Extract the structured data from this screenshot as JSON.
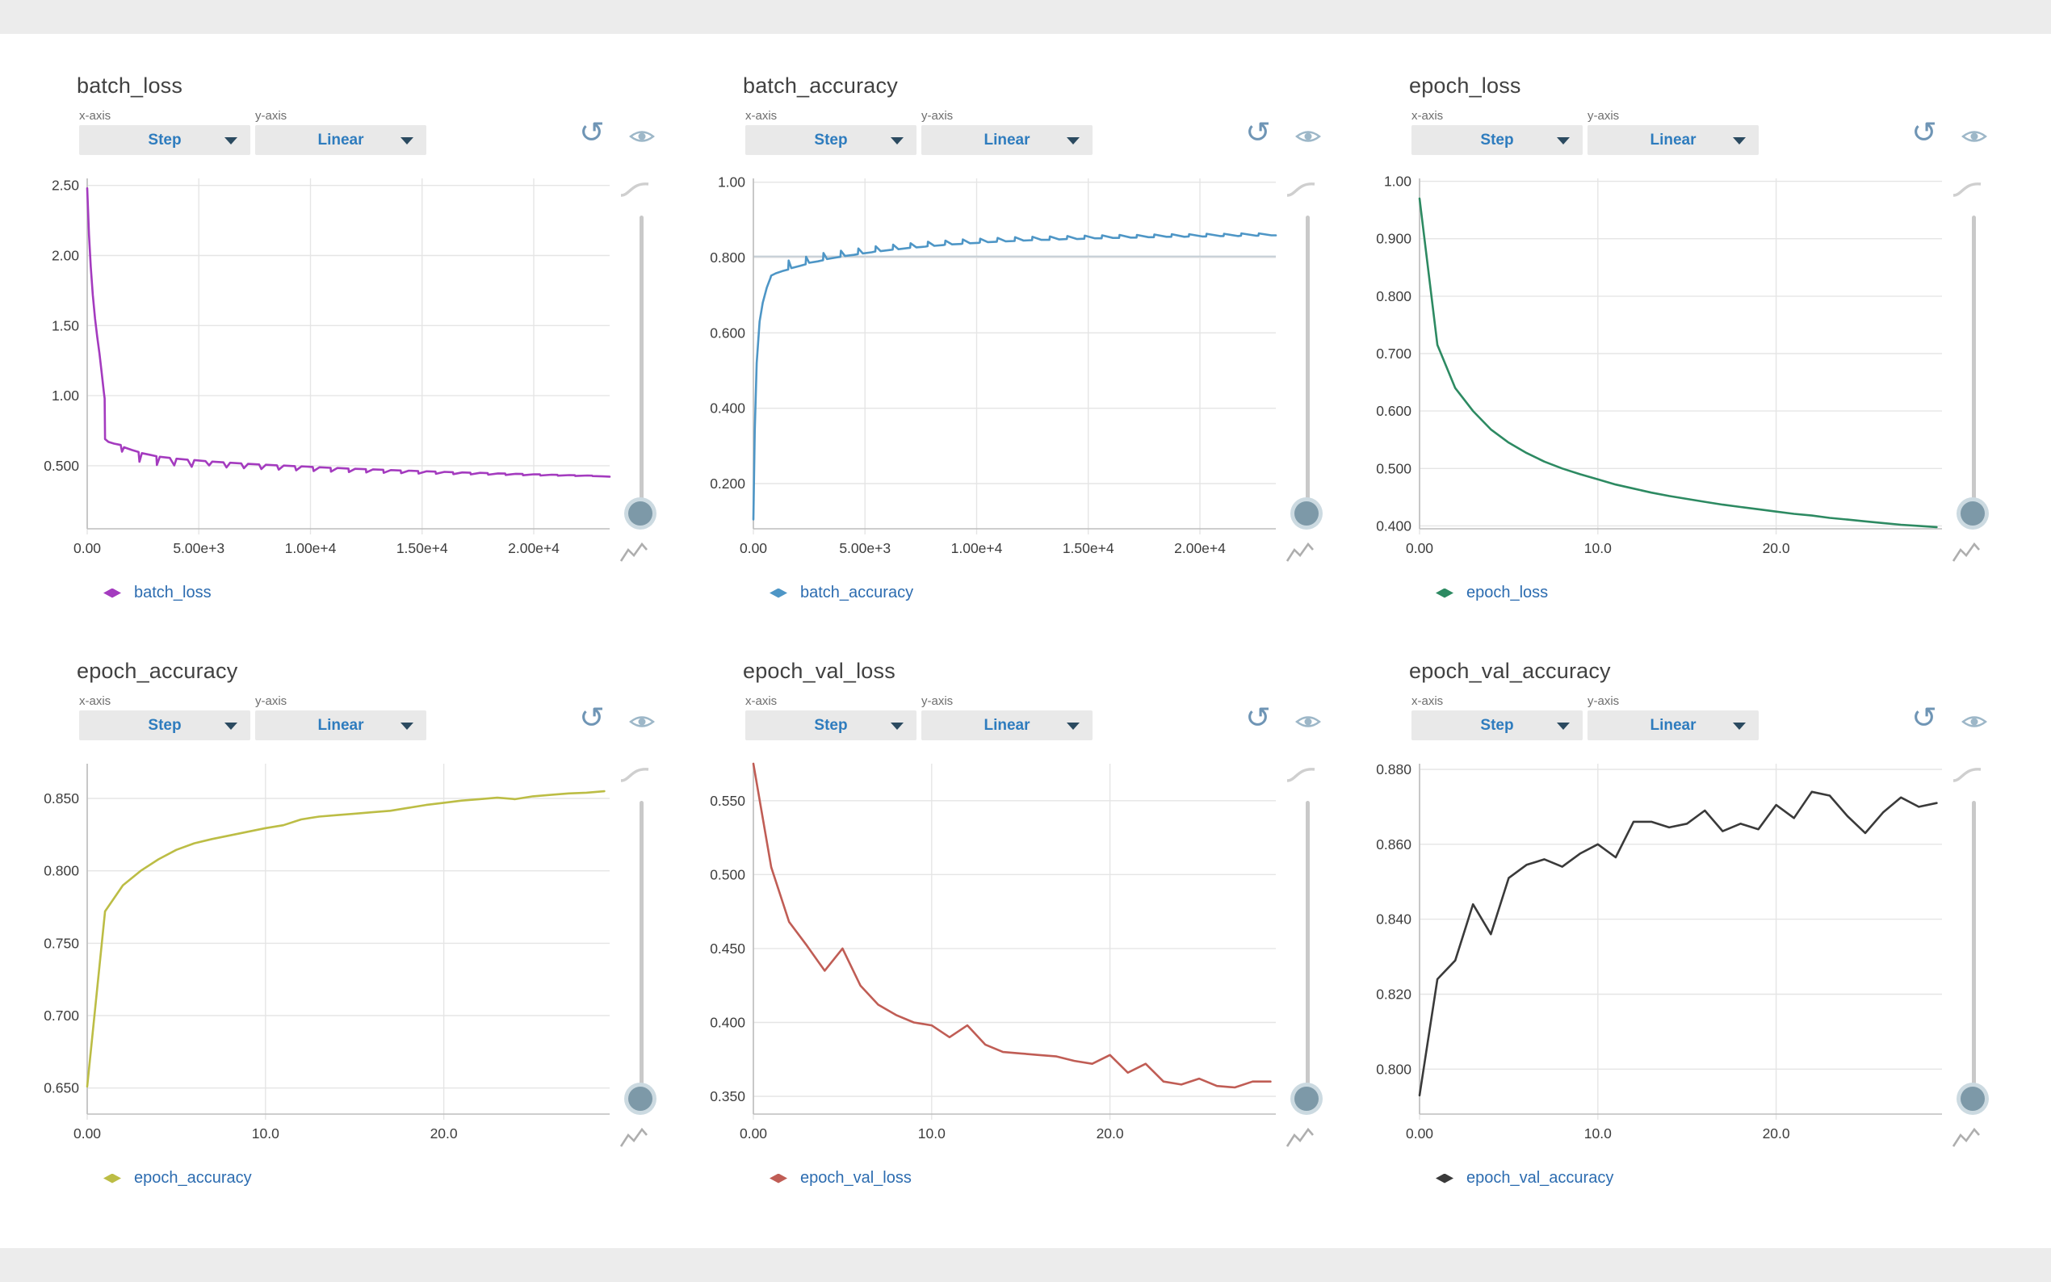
{
  "ui": {
    "x_axis_label": "x-axis",
    "y_axis_label": "y-axis",
    "x_axis_value": "Step",
    "y_axis_value": "Linear",
    "accent_blue": "#2e7cbe",
    "icon_colors": {
      "refresh-icon": "#6f95b5",
      "eye-icon": "#9db7c8",
      "smoothing-curve-icon": "#cfcfcf",
      "line-chart-icon": "#aeaeae",
      "slider-thumb": "#7d99a8"
    },
    "refresh_glyph": "↺"
  },
  "chart_data": [
    {
      "type": "line",
      "title": "batch_loss",
      "legend": "batch_loss",
      "series_color": "#a43bbf",
      "x_domain": [
        0,
        23400
      ],
      "y_domain": [
        0.05,
        2.55
      ],
      "x_ticks": [
        {
          "label": "0.00",
          "v": 0
        },
        {
          "label": "5.00e+3",
          "v": 5000
        },
        {
          "label": "1.00e+4",
          "v": 10000
        },
        {
          "label": "1.50e+4",
          "v": 15000
        },
        {
          "label": "2.00e+4",
          "v": 20000
        }
      ],
      "y_ticks": [
        {
          "label": "2.50",
          "v": 2.5
        },
        {
          "label": "2.00",
          "v": 2.0
        },
        {
          "label": "1.50",
          "v": 1.5
        },
        {
          "label": "1.00",
          "v": 1.0
        },
        {
          "label": "0.500",
          "v": 0.5
        }
      ],
      "points": [
        [
          0,
          2.48
        ],
        [
          80,
          2.15
        ],
        [
          160,
          1.92
        ],
        [
          250,
          1.72
        ],
        [
          350,
          1.55
        ],
        [
          450,
          1.42
        ],
        [
          550,
          1.3
        ],
        [
          650,
          1.16
        ],
        [
          750,
          1.02
        ],
        [
          780,
          0.98
        ],
        [
          800,
          0.69
        ],
        [
          950,
          0.67
        ],
        [
          1200,
          0.658
        ],
        [
          1500,
          0.648
        ],
        [
          1560,
          0.6
        ],
        [
          1650,
          0.632
        ],
        [
          2000,
          0.612
        ],
        [
          2300,
          0.598
        ],
        [
          2340,
          0.528
        ],
        [
          2450,
          0.59
        ],
        [
          2800,
          0.578
        ],
        [
          3100,
          0.568
        ],
        [
          3120,
          0.505
        ],
        [
          3250,
          0.564
        ],
        [
          3700,
          0.556
        ],
        [
          3900,
          0.502
        ],
        [
          4000,
          0.55
        ],
        [
          4500,
          0.543
        ],
        [
          4680,
          0.492
        ],
        [
          4800,
          0.54
        ],
        [
          5300,
          0.533
        ],
        [
          5460,
          0.502
        ],
        [
          5600,
          0.529
        ],
        [
          6100,
          0.524
        ],
        [
          6240,
          0.488
        ],
        [
          6400,
          0.521
        ],
        [
          6900,
          0.516
        ],
        [
          7020,
          0.482
        ],
        [
          7200,
          0.513
        ],
        [
          7700,
          0.509
        ],
        [
          7800,
          0.476
        ],
        [
          8000,
          0.507
        ],
        [
          8500,
          0.503
        ],
        [
          8580,
          0.472
        ],
        [
          8800,
          0.501
        ],
        [
          9300,
          0.497
        ],
        [
          9360,
          0.467
        ],
        [
          9600,
          0.495
        ],
        [
          10100,
          0.491
        ],
        [
          10140,
          0.462
        ],
        [
          10400,
          0.489
        ],
        [
          10900,
          0.485
        ],
        [
          10920,
          0.458
        ],
        [
          11200,
          0.484
        ],
        [
          11700,
          0.48
        ],
        [
          11720,
          0.455
        ],
        [
          12000,
          0.478
        ],
        [
          12480,
          0.475
        ],
        [
          12500,
          0.452
        ],
        [
          12800,
          0.474
        ],
        [
          13260,
          0.471
        ],
        [
          13280,
          0.449
        ],
        [
          13600,
          0.469
        ],
        [
          14040,
          0.466
        ],
        [
          14060,
          0.447
        ],
        [
          14400,
          0.465
        ],
        [
          14820,
          0.462
        ],
        [
          14840,
          0.444
        ],
        [
          15200,
          0.46
        ],
        [
          15600,
          0.458
        ],
        [
          15620,
          0.442
        ],
        [
          16000,
          0.456
        ],
        [
          16380,
          0.454
        ],
        [
          16400,
          0.44
        ],
        [
          16800,
          0.452
        ],
        [
          17160,
          0.45
        ],
        [
          17180,
          0.438
        ],
        [
          17600,
          0.449
        ],
        [
          17940,
          0.447
        ],
        [
          17960,
          0.436
        ],
        [
          18400,
          0.445
        ],
        [
          18720,
          0.444
        ],
        [
          18740,
          0.434
        ],
        [
          19200,
          0.442
        ],
        [
          19500,
          0.441
        ],
        [
          19520,
          0.432
        ],
        [
          20000,
          0.439
        ],
        [
          20280,
          0.438
        ],
        [
          20300,
          0.43
        ],
        [
          20800,
          0.436
        ],
        [
          21060,
          0.435
        ],
        [
          21080,
          0.429
        ],
        [
          21600,
          0.433
        ],
        [
          21840,
          0.432
        ],
        [
          21860,
          0.427
        ],
        [
          22400,
          0.43
        ],
        [
          22620,
          0.429
        ],
        [
          22640,
          0.426
        ],
        [
          23100,
          0.424
        ],
        [
          23400,
          0.422
        ]
      ]
    },
    {
      "type": "line",
      "title": "batch_accuracy",
      "legend": "batch_accuracy",
      "series_color": "#4e96c6",
      "x_domain": [
        0,
        23400
      ],
      "y_domain": [
        0.08,
        1.01
      ],
      "ref_line": {
        "v": 0.803,
        "color": "#c5cfd6"
      },
      "x_ticks": [
        {
          "label": "0.00",
          "v": 0
        },
        {
          "label": "5.00e+3",
          "v": 5000
        },
        {
          "label": "1.00e+4",
          "v": 10000
        },
        {
          "label": "1.50e+4",
          "v": 15000
        },
        {
          "label": "2.00e+4",
          "v": 20000
        }
      ],
      "y_ticks": [
        {
          "label": "1.00",
          "v": 1.0
        },
        {
          "label": "0.800",
          "v": 0.8
        },
        {
          "label": "0.600",
          "v": 0.6
        },
        {
          "label": "0.400",
          "v": 0.4
        },
        {
          "label": "0.200",
          "v": 0.2
        }
      ],
      "points": [
        [
          0,
          0.105
        ],
        [
          60,
          0.34
        ],
        [
          150,
          0.52
        ],
        [
          280,
          0.63
        ],
        [
          420,
          0.68
        ],
        [
          600,
          0.72
        ],
        [
          760,
          0.745
        ],
        [
          800,
          0.752
        ],
        [
          1000,
          0.758
        ],
        [
          1300,
          0.764
        ],
        [
          1560,
          0.768
        ],
        [
          1580,
          0.792
        ],
        [
          1700,
          0.772
        ],
        [
          2100,
          0.778
        ],
        [
          2340,
          0.782
        ],
        [
          2360,
          0.802
        ],
        [
          2500,
          0.786
        ],
        [
          2900,
          0.79
        ],
        [
          3120,
          0.793
        ],
        [
          3140,
          0.812
        ],
        [
          3300,
          0.796
        ],
        [
          3700,
          0.8
        ],
        [
          3900,
          0.802
        ],
        [
          3920,
          0.818
        ],
        [
          4100,
          0.804
        ],
        [
          4500,
          0.807
        ],
        [
          4680,
          0.809
        ],
        [
          4700,
          0.824
        ],
        [
          4900,
          0.811
        ],
        [
          5300,
          0.814
        ],
        [
          5460,
          0.816
        ],
        [
          5480,
          0.83
        ],
        [
          5700,
          0.817
        ],
        [
          6100,
          0.82
        ],
        [
          6240,
          0.821
        ],
        [
          6260,
          0.834
        ],
        [
          6500,
          0.822
        ],
        [
          6900,
          0.825
        ],
        [
          7020,
          0.826
        ],
        [
          7040,
          0.838
        ],
        [
          7300,
          0.827
        ],
        [
          7700,
          0.829
        ],
        [
          7800,
          0.83
        ],
        [
          7820,
          0.842
        ],
        [
          8100,
          0.831
        ],
        [
          8500,
          0.833
        ],
        [
          8580,
          0.834
        ],
        [
          8600,
          0.845
        ],
        [
          8900,
          0.835
        ],
        [
          9300,
          0.836
        ],
        [
          9360,
          0.837
        ],
        [
          9380,
          0.848
        ],
        [
          9700,
          0.838
        ],
        [
          10100,
          0.839
        ],
        [
          10140,
          0.84
        ],
        [
          10160,
          0.85
        ],
        [
          10500,
          0.841
        ],
        [
          10900,
          0.842
        ],
        [
          10940,
          0.852
        ],
        [
          11300,
          0.843
        ],
        [
          11700,
          0.844
        ],
        [
          11720,
          0.854
        ],
        [
          12100,
          0.845
        ],
        [
          12480,
          0.846
        ],
        [
          12500,
          0.855
        ],
        [
          12900,
          0.847
        ],
        [
          13260,
          0.847
        ],
        [
          13280,
          0.856
        ],
        [
          13700,
          0.848
        ],
        [
          14040,
          0.849
        ],
        [
          14060,
          0.857
        ],
        [
          14500,
          0.849
        ],
        [
          14820,
          0.85
        ],
        [
          14840,
          0.858
        ],
        [
          15300,
          0.851
        ],
        [
          15600,
          0.851
        ],
        [
          15620,
          0.859
        ],
        [
          16100,
          0.852
        ],
        [
          16380,
          0.852
        ],
        [
          16400,
          0.86
        ],
        [
          16900,
          0.853
        ],
        [
          17160,
          0.853
        ],
        [
          17180,
          0.86
        ],
        [
          17700,
          0.854
        ],
        [
          17940,
          0.854
        ],
        [
          17960,
          0.861
        ],
        [
          18500,
          0.855
        ],
        [
          18720,
          0.855
        ],
        [
          18740,
          0.862
        ],
        [
          19300,
          0.855
        ],
        [
          19500,
          0.856
        ],
        [
          19520,
          0.862
        ],
        [
          20100,
          0.856
        ],
        [
          20280,
          0.856
        ],
        [
          20300,
          0.863
        ],
        [
          20900,
          0.857
        ],
        [
          21060,
          0.857
        ],
        [
          21080,
          0.863
        ],
        [
          21700,
          0.857
        ],
        [
          21840,
          0.858
        ],
        [
          21860,
          0.864
        ],
        [
          22500,
          0.858
        ],
        [
          22620,
          0.858
        ],
        [
          22640,
          0.864
        ],
        [
          23200,
          0.859
        ],
        [
          23400,
          0.859
        ]
      ]
    },
    {
      "type": "line",
      "title": "epoch_loss",
      "legend": "epoch_loss",
      "series_color": "#2d8a62",
      "x_domain": [
        0,
        29.3
      ],
      "y_domain": [
        0.395,
        1.005
      ],
      "x_ticks": [
        {
          "label": "0.00",
          "v": 0
        },
        {
          "label": "10.0",
          "v": 10
        },
        {
          "label": "20.0",
          "v": 20
        }
      ],
      "y_ticks": [
        {
          "label": "1.00",
          "v": 1.0
        },
        {
          "label": "0.900",
          "v": 0.9
        },
        {
          "label": "0.800",
          "v": 0.8
        },
        {
          "label": "0.700",
          "v": 0.7
        },
        {
          "label": "0.600",
          "v": 0.6
        },
        {
          "label": "0.500",
          "v": 0.5
        },
        {
          "label": "0.400",
          "v": 0.4
        }
      ],
      "values": [
        0.97,
        0.715,
        0.64,
        0.6,
        0.568,
        0.545,
        0.527,
        0.512,
        0.5,
        0.49,
        0.481,
        0.472,
        0.465,
        0.458,
        0.452,
        0.447,
        0.442,
        0.437,
        0.433,
        0.429,
        0.425,
        0.421,
        0.418,
        0.414,
        0.411,
        0.408,
        0.405,
        0.402,
        0.4,
        0.398
      ]
    },
    {
      "type": "line",
      "title": "epoch_accuracy",
      "legend": "epoch_accuracy",
      "series_color": "#bcbd45",
      "x_domain": [
        0,
        29.3
      ],
      "y_domain": [
        0.632,
        0.874
      ],
      "x_ticks": [
        {
          "label": "0.00",
          "v": 0
        },
        {
          "label": "10.0",
          "v": 10
        },
        {
          "label": "20.0",
          "v": 20
        }
      ],
      "y_ticks": [
        {
          "label": "0.850",
          "v": 0.85
        },
        {
          "label": "0.800",
          "v": 0.8
        },
        {
          "label": "0.750",
          "v": 0.75
        },
        {
          "label": "0.700",
          "v": 0.7
        },
        {
          "label": "0.650",
          "v": 0.65
        }
      ],
      "values": [
        0.651,
        0.772,
        0.79,
        0.8,
        0.808,
        0.8145,
        0.819,
        0.822,
        0.8245,
        0.827,
        0.8295,
        0.8315,
        0.8355,
        0.8375,
        0.8385,
        0.8395,
        0.8405,
        0.8415,
        0.8435,
        0.8455,
        0.847,
        0.8485,
        0.8495,
        0.8505,
        0.8495,
        0.8515,
        0.8525,
        0.8535,
        0.854,
        0.855
      ]
    },
    {
      "type": "line",
      "title": "epoch_val_loss",
      "legend": "epoch_val_loss",
      "series_color": "#c05d55",
      "x_domain": [
        0,
        29.3
      ],
      "y_domain": [
        0.338,
        0.575
      ],
      "x_ticks": [
        {
          "label": "0.00",
          "v": 0
        },
        {
          "label": "10.0",
          "v": 10
        },
        {
          "label": "20.0",
          "v": 20
        }
      ],
      "y_ticks": [
        {
          "label": "0.550",
          "v": 0.55
        },
        {
          "label": "0.500",
          "v": 0.5
        },
        {
          "label": "0.450",
          "v": 0.45
        },
        {
          "label": "0.400",
          "v": 0.4
        },
        {
          "label": "0.350",
          "v": 0.35
        }
      ],
      "values": [
        0.575,
        0.505,
        0.468,
        0.452,
        0.435,
        0.45,
        0.425,
        0.412,
        0.405,
        0.4,
        0.398,
        0.39,
        0.398,
        0.385,
        0.38,
        0.379,
        0.378,
        0.377,
        0.374,
        0.372,
        0.378,
        0.366,
        0.372,
        0.36,
        0.358,
        0.362,
        0.357,
        0.356,
        0.36,
        0.36
      ]
    },
    {
      "type": "line",
      "title": "epoch_val_accuracy",
      "legend": "epoch_val_accuracy",
      "series_color": "#3a3a3a",
      "x_domain": [
        0,
        29.3
      ],
      "y_domain": [
        0.788,
        0.8815
      ],
      "x_ticks": [
        {
          "label": "0.00",
          "v": 0
        },
        {
          "label": "10.0",
          "v": 10
        },
        {
          "label": "20.0",
          "v": 20
        }
      ],
      "y_ticks": [
        {
          "label": "0.880",
          "v": 0.88
        },
        {
          "label": "0.860",
          "v": 0.86
        },
        {
          "label": "0.840",
          "v": 0.84
        },
        {
          "label": "0.820",
          "v": 0.82
        },
        {
          "label": "0.800",
          "v": 0.8
        }
      ],
      "values": [
        0.793,
        0.824,
        0.829,
        0.844,
        0.836,
        0.851,
        0.8545,
        0.856,
        0.854,
        0.8575,
        0.86,
        0.8565,
        0.866,
        0.866,
        0.8645,
        0.8655,
        0.869,
        0.8635,
        0.8655,
        0.864,
        0.8705,
        0.867,
        0.874,
        0.873,
        0.8675,
        0.863,
        0.8685,
        0.8725,
        0.87,
        0.871
      ]
    }
  ]
}
